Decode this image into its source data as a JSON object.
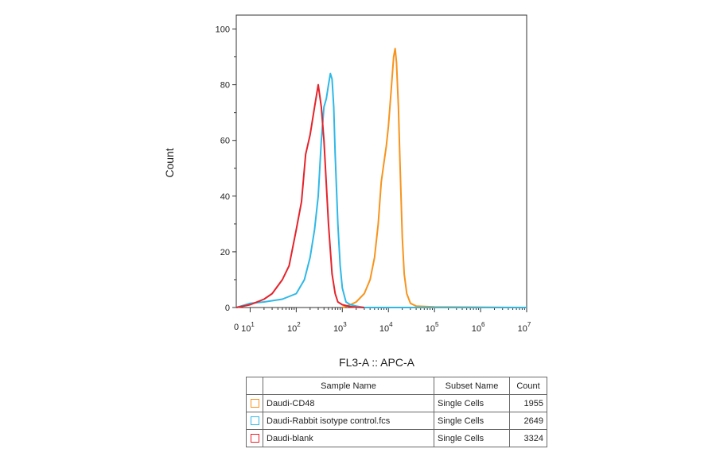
{
  "chart_data": {
    "type": "line",
    "title": "",
    "xlabel": "FL3-A :: APC-A",
    "ylabel": "Count",
    "x_scale": "log",
    "xlim": [
      5,
      10000000
    ],
    "ylim": [
      0,
      105
    ],
    "x_ticks": [
      {
        "base": "10",
        "exp": "1",
        "value": 10
      },
      {
        "base": "10",
        "exp": "2",
        "value": 100
      },
      {
        "base": "10",
        "exp": "3",
        "value": 1000
      },
      {
        "base": "10",
        "exp": "4",
        "value": 10000
      },
      {
        "base": "10",
        "exp": "5",
        "value": 100000
      },
      {
        "base": "10",
        "exp": "6",
        "value": 1000000
      },
      {
        "base": "10",
        "exp": "7",
        "value": 10000000
      }
    ],
    "y_ticks": [
      0,
      20,
      40,
      60,
      80,
      100
    ],
    "zero_tick_label": "0",
    "grid": false,
    "series": [
      {
        "name": "Daudi-CD48",
        "color": "#f7941d",
        "x": [
          1000,
          1500,
          2000,
          3000,
          4000,
          5000,
          6000,
          7000,
          8000,
          9000,
          10000,
          11500,
          13000,
          14000,
          15000,
          16500,
          18000,
          20000,
          22000,
          25000,
          30000,
          40000,
          100000,
          1000000,
          10000000
        ],
        "y": [
          0,
          1,
          2,
          5,
          10,
          18,
          30,
          45,
          52,
          58,
          65,
          78,
          90,
          93,
          88,
          72,
          50,
          25,
          12,
          5,
          1.5,
          0.5,
          0.2,
          0.1,
          0
        ]
      },
      {
        "name": "Daudi-Rabbit isotype control.fcs",
        "color": "#2fb8e6",
        "x": [
          5,
          8,
          10,
          20,
          50,
          100,
          150,
          200,
          250,
          300,
          350,
          400,
          450,
          500,
          550,
          600,
          650,
          700,
          800,
          900,
          1000,
          1200,
          1500,
          2000,
          3000,
          10000000
        ],
        "y": [
          0,
          1,
          1.5,
          2,
          3,
          5,
          10,
          18,
          28,
          40,
          60,
          72,
          75,
          80,
          84,
          82,
          72,
          55,
          30,
          15,
          7,
          2,
          1,
          0.5,
          0,
          0
        ]
      },
      {
        "name": "Daudi-blank",
        "color": "#e5232b",
        "x": [
          5,
          10,
          20,
          30,
          50,
          70,
          100,
          130,
          160,
          200,
          250,
          300,
          350,
          400,
          500,
          600,
          700,
          800,
          1000,
          1500,
          2000,
          3000
        ],
        "y": [
          0,
          1,
          3,
          5,
          10,
          15,
          28,
          38,
          55,
          62,
          72,
          80,
          72,
          60,
          30,
          12,
          5,
          2,
          1,
          0.3,
          0.1,
          0
        ]
      }
    ]
  },
  "legend": {
    "headers": {
      "sample": "Sample Name",
      "subset": "Subset Name",
      "count": "Count"
    },
    "rows": [
      {
        "color": "#f7941d",
        "sample": "Daudi-CD48",
        "subset": "Single Cells",
        "count": "1955"
      },
      {
        "color": "#2fb8e6",
        "sample": "Daudi-Rabbit isotype control.fcs",
        "subset": "Single Cells",
        "count": "2649"
      },
      {
        "color": "#e5232b",
        "sample": "Daudi-blank",
        "subset": "Single Cells",
        "count": "3324"
      }
    ]
  }
}
